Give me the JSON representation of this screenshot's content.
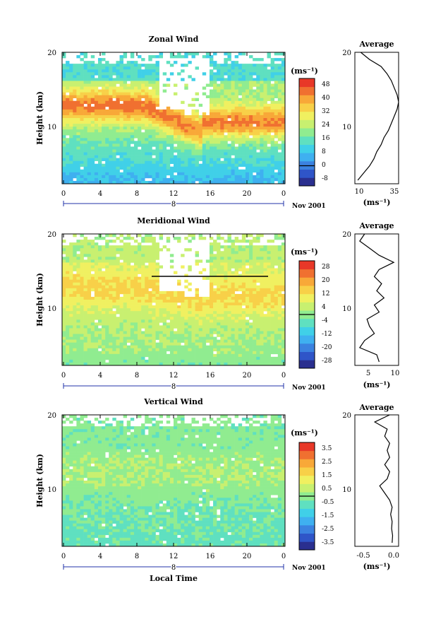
{
  "colors": {
    "palette": [
      "#2a2f8f",
      "#2f55c8",
      "#3b82e0",
      "#3fb0f0",
      "#40d0e8",
      "#5fe0c0",
      "#90ec90",
      "#c8f070",
      "#f0f060",
      "#f8d048",
      "#f8a838",
      "#f07030",
      "#e83828"
    ]
  },
  "chart_data": [
    {
      "type": "heatmap",
      "title": "Zonal Wind",
      "ylabel": "Height (km)",
      "xlabel": "",
      "x_ticks": [
        "0",
        "4",
        "8",
        "12",
        "16",
        "20",
        "0"
      ],
      "y_ticks": [
        "20",
        "10"
      ],
      "x_range": [
        0,
        24
      ],
      "y_range": [
        1.5,
        20
      ],
      "day_label": "8",
      "date_label": "Nov 2001",
      "colorbar": {
        "unit": "(ms⁻¹)",
        "tick_labels": [
          "48",
          "40",
          "32",
          "24",
          "16",
          "8",
          "0",
          "-8"
        ],
        "range": [
          -12,
          52
        ]
      },
      "profile": {
        "title": "Average",
        "unit": "(ms⁻¹)",
        "x_ticks": [
          "10",
          "35"
        ],
        "x_range": [
          8,
          38
        ],
        "y_ticks": [
          "20",
          "10"
        ],
        "heights": [
          2,
          3,
          4,
          5,
          6,
          7,
          8,
          9,
          10,
          11,
          12,
          13,
          14,
          15,
          16,
          17,
          18,
          19,
          20
        ],
        "values": [
          10,
          14,
          18,
          21,
          23,
          26,
          28,
          31,
          33,
          35,
          37,
          38,
          37,
          35,
          33,
          30,
          26,
          18,
          12
        ]
      },
      "field": {
        "low": 4,
        "mid": 22,
        "high": 44,
        "jet_height": 12.5,
        "jet_width": 2.2,
        "descent_start": 9,
        "descent_end": 15,
        "descent_depth": 4
      }
    },
    {
      "type": "heatmap",
      "title": "Meridional Wind",
      "ylabel": "Height (km)",
      "xlabel": "",
      "x_ticks": [
        "0",
        "4",
        "8",
        "12",
        "16",
        "20",
        "0"
      ],
      "y_ticks": [
        "20",
        "10"
      ],
      "x_range": [
        0,
        24
      ],
      "y_range": [
        1.5,
        20
      ],
      "day_label": "8",
      "date_label": "Nov 2001",
      "colorbar": {
        "unit": "(ms⁻¹)",
        "tick_labels": [
          "28",
          "20",
          "12",
          "4",
          "-4",
          "-12",
          "-20",
          "-28"
        ],
        "range": [
          -32,
          32
        ]
      },
      "profile": {
        "title": "Average",
        "unit": "(ms⁻¹)",
        "x_ticks": [
          "5",
          "10"
        ],
        "x_range": [
          2,
          11
        ],
        "y_ticks": [
          "20",
          "10"
        ],
        "heights": [
          2,
          3,
          4,
          5,
          6,
          7,
          8,
          9,
          10,
          11,
          12,
          13,
          14,
          15,
          16,
          17,
          18,
          19,
          20
        ],
        "values": [
          7,
          6.5,
          3,
          4,
          6,
          5,
          4.5,
          7,
          6,
          8,
          6.5,
          7.5,
          6,
          7,
          10,
          7,
          5,
          3,
          4
        ]
      },
      "field": {
        "low": -2,
        "mid": 6,
        "high": 14,
        "jet_height": 12.5,
        "jet_width": 2.5,
        "descent_start": 9,
        "descent_end": 15,
        "descent_depth": 2
      }
    },
    {
      "type": "heatmap",
      "title": "Vertical Wind",
      "ylabel": "Height (km)",
      "xlabel": "Local Time",
      "x_ticks": [
        "0",
        "4",
        "8",
        "12",
        "16",
        "20",
        "0"
      ],
      "y_ticks": [
        "20",
        "10"
      ],
      "x_range": [
        0,
        24
      ],
      "y_range": [
        1.5,
        20
      ],
      "day_label": "8",
      "date_label": "Nov 2001",
      "colorbar": {
        "unit": "(ms⁻¹)",
        "tick_labels": [
          "3.5",
          "2.5",
          "1.5",
          "0.5",
          "-0.5",
          "-1.5",
          "-2.5",
          "-3.5"
        ],
        "range": [
          -4,
          4
        ]
      },
      "profile": {
        "title": "Average",
        "unit": "(ms⁻¹)",
        "x_ticks": [
          "-0.5",
          "0.0"
        ],
        "x_range": [
          -0.8,
          0.08
        ],
        "y_ticks": [
          "20",
          "10"
        ],
        "heights": [
          2,
          3,
          4,
          5,
          6,
          7,
          8,
          9,
          10,
          11,
          12,
          13,
          14,
          15,
          16,
          17,
          18,
          19,
          20
        ],
        "values": [
          -0.05,
          -0.04,
          -0.06,
          -0.05,
          -0.08,
          -0.05,
          -0.1,
          -0.2,
          -0.3,
          -0.15,
          -0.1,
          -0.2,
          -0.1,
          -0.15,
          -0.1,
          -0.2,
          -0.15,
          -0.4,
          -0.1
        ]
      },
      "field": {
        "low": -0.6,
        "mid": -0.2,
        "high": 0.3,
        "jet_height": 12,
        "jet_width": 3,
        "descent_start": 0,
        "descent_end": 0,
        "descent_depth": 0
      }
    }
  ]
}
